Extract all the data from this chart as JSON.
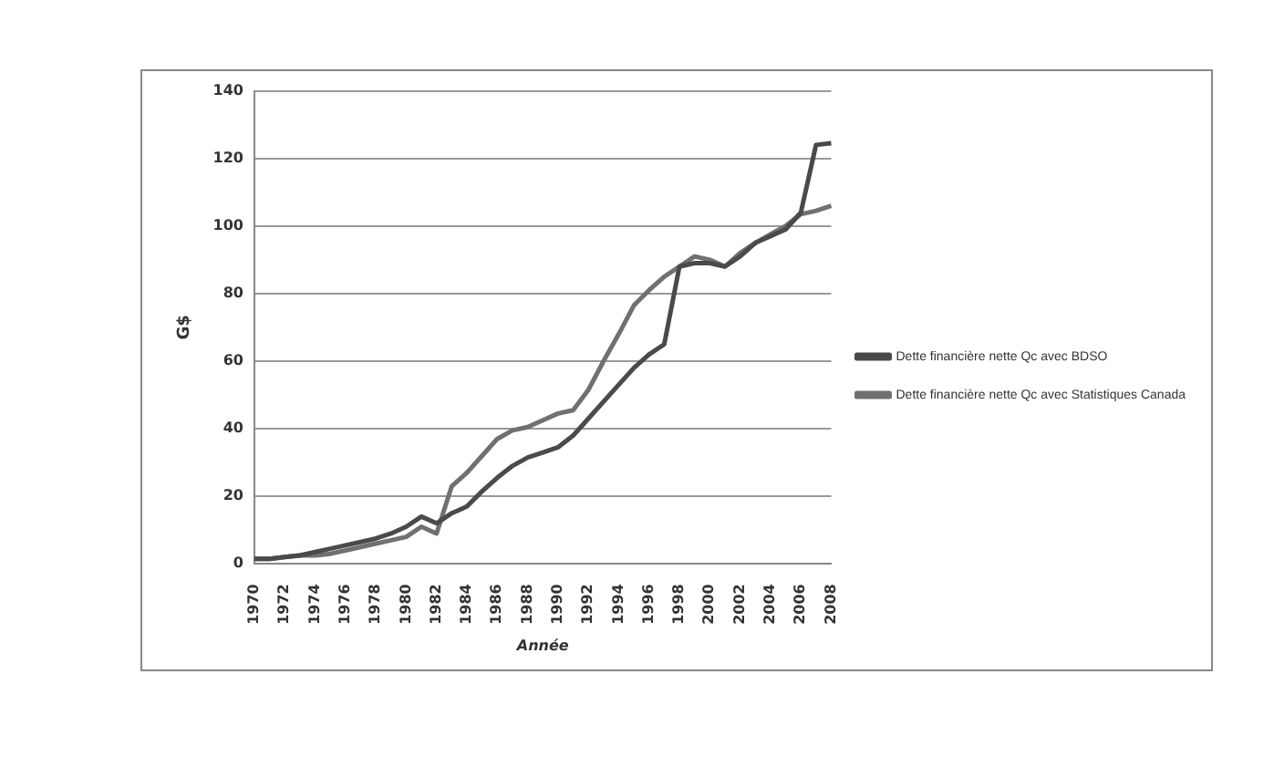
{
  "chart_data": {
    "type": "line",
    "ylabel": "G$",
    "xlabel": "Année",
    "categories": [
      "1970",
      null,
      "1972",
      null,
      "1974",
      null,
      "1976",
      null,
      "1978",
      null,
      "1980",
      null,
      "1982",
      null,
      "1984",
      null,
      "1986",
      null,
      "1988",
      null,
      "1990",
      null,
      "1992",
      null,
      "1994",
      null,
      "1996",
      null,
      "1998",
      null,
      "2000",
      null,
      "2002",
      null,
      "2004",
      null,
      "2006",
      null,
      "2008"
    ],
    "series": [
      {
        "name": "Dette financière nette Qc avec BDSO",
        "color": "#4a4a4a",
        "values": [
          1.5,
          1.5,
          2,
          2.5,
          3.5,
          4.5,
          5.5,
          6.5,
          7.5,
          9,
          11,
          14,
          12,
          15,
          17,
          21.5,
          25.5,
          29,
          31.5,
          33,
          34.5,
          38,
          43,
          48,
          53,
          58,
          62,
          65,
          88,
          89,
          89,
          88,
          91,
          95,
          97,
          99,
          104,
          124,
          124.5
        ]
      },
      {
        "name": "Dette financière nette Qc avec Statistiques Canada",
        "color": "#707070",
        "values": [
          1.5,
          1.5,
          2,
          2.5,
          2.5,
          3,
          4,
          5,
          6,
          7,
          8,
          11,
          9,
          23,
          27,
          32,
          37,
          39.5,
          40.5,
          42.5,
          44.5,
          45.5,
          51.5,
          60,
          68,
          76.5,
          81,
          85,
          88,
          91,
          90,
          88,
          92,
          95,
          97.5,
          100,
          103.5,
          104.5,
          106
        ]
      }
    ],
    "ylim": [
      0,
      140
    ],
    "yticks": [
      0,
      20,
      40,
      60,
      80,
      100,
      120,
      140
    ],
    "grid": "y",
    "legend": "right",
    "marker": "none",
    "line_style": "solid"
  }
}
